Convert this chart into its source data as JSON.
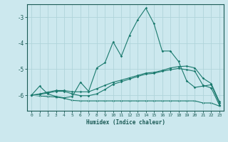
{
  "xlabel": "Humidex (Indice chaleur)",
  "background_color": "#cce8ee",
  "grid_color": "#b0d4da",
  "line_color": "#1a7a6e",
  "x_values": [
    0,
    1,
    2,
    3,
    4,
    5,
    6,
    7,
    8,
    9,
    10,
    11,
    12,
    13,
    14,
    15,
    16,
    17,
    18,
    19,
    20,
    21,
    22,
    23
  ],
  "line1_y": [
    -6.0,
    -5.65,
    -5.95,
    -6.05,
    -6.1,
    -6.05,
    -5.5,
    -5.85,
    -4.95,
    -4.75,
    -3.95,
    -4.5,
    -3.7,
    -3.1,
    -2.65,
    -3.25,
    -4.3,
    -4.3,
    -4.7,
    -5.45,
    -5.7,
    -5.65,
    -5.6,
    -6.3
  ],
  "line2_y": [
    -6.0,
    -5.95,
    -5.88,
    -5.82,
    -5.82,
    -5.87,
    -5.87,
    -5.87,
    -5.75,
    -5.62,
    -5.5,
    -5.42,
    -5.33,
    -5.24,
    -5.15,
    -5.12,
    -5.05,
    -4.95,
    -4.9,
    -4.88,
    -4.95,
    -5.35,
    -5.55,
    -6.25
  ],
  "line3_y": [
    -6.0,
    -5.97,
    -5.92,
    -5.85,
    -5.85,
    -5.95,
    -6.02,
    -6.02,
    -5.95,
    -5.78,
    -5.58,
    -5.48,
    -5.38,
    -5.28,
    -5.19,
    -5.16,
    -5.08,
    -5.02,
    -4.97,
    -5.02,
    -5.08,
    -5.62,
    -5.72,
    -6.38
  ],
  "line4_y": [
    -6.0,
    -6.03,
    -6.05,
    -6.07,
    -6.12,
    -6.2,
    -6.22,
    -6.22,
    -6.22,
    -6.22,
    -6.22,
    -6.22,
    -6.22,
    -6.22,
    -6.22,
    -6.22,
    -6.22,
    -6.22,
    -6.22,
    -6.22,
    -6.22,
    -6.3,
    -6.3,
    -6.42
  ],
  "ylim": [
    -6.6,
    -2.5
  ],
  "yticks": [
    -6,
    -5,
    -4,
    -3
  ],
  "xlim": [
    -0.5,
    23.5
  ],
  "xticks": [
    0,
    1,
    2,
    3,
    4,
    5,
    6,
    7,
    8,
    9,
    10,
    11,
    12,
    13,
    14,
    15,
    16,
    17,
    18,
    19,
    20,
    21,
    22,
    23
  ]
}
